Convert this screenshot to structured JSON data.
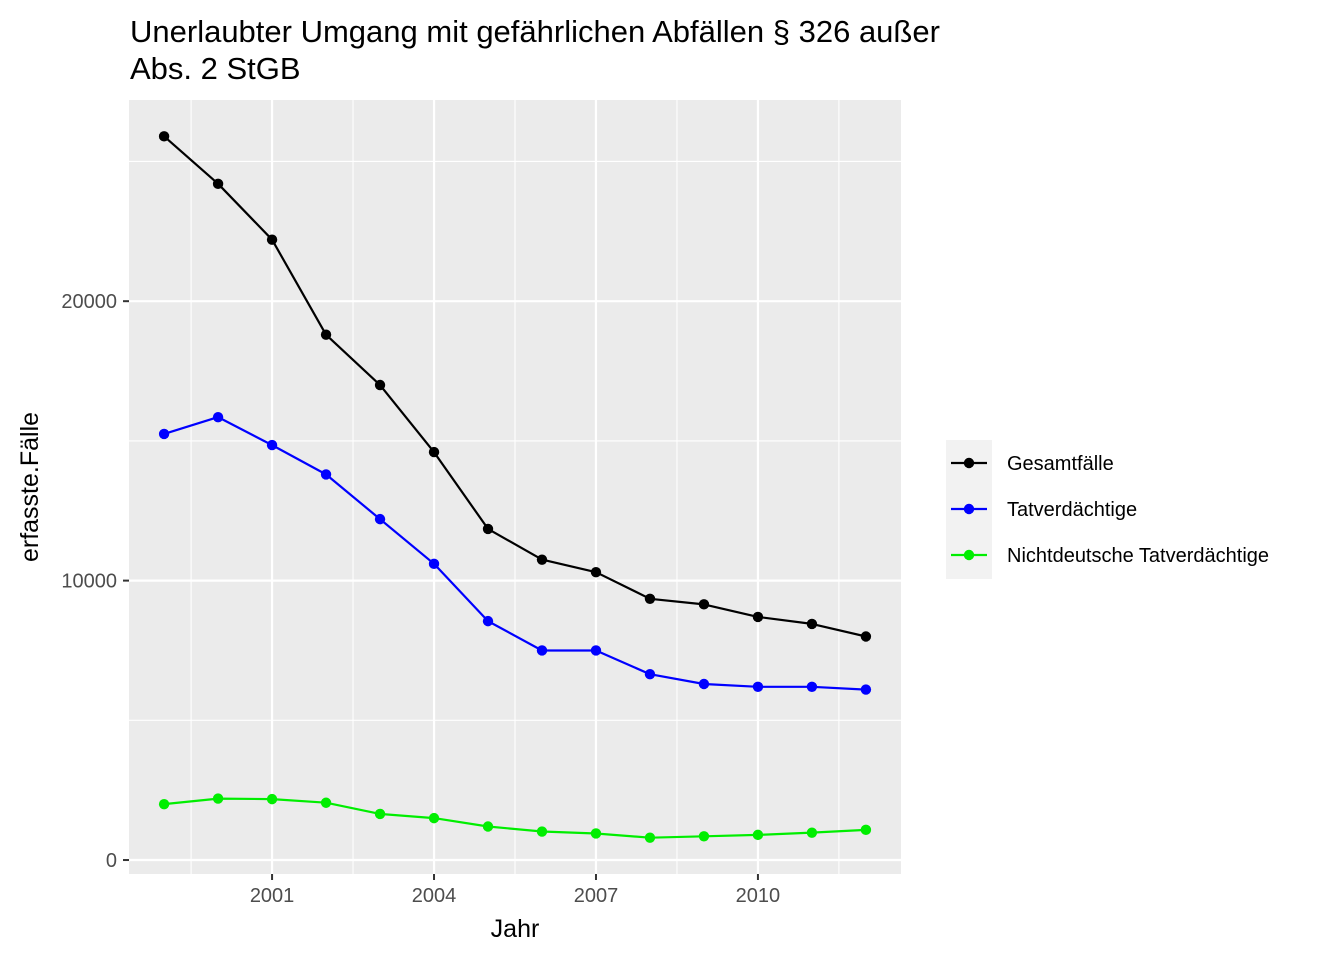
{
  "chart_data": {
    "type": "line",
    "title_lines": [
      "Unerlaubter Umgang mit gefährlichen Abfällen § 326 außer",
      "Abs. 2 StGB"
    ],
    "xlabel": "Jahr",
    "ylabel": "erfasste.Fälle",
    "x": [
      1999,
      2000,
      2001,
      2002,
      2003,
      2004,
      2005,
      2006,
      2007,
      2008,
      2009,
      2010,
      2011,
      2012
    ],
    "xlim": [
      1998.35,
      2012.65
    ],
    "ylim": [
      -500,
      27200
    ],
    "x_ticks": [
      2001,
      2004,
      2007,
      2010
    ],
    "x_tick_labels": [
      "2001",
      "2004",
      "2007",
      "2010"
    ],
    "y_ticks": [
      0,
      10000,
      20000
    ],
    "y_tick_labels": [
      "0",
      "10000",
      "20000"
    ],
    "grid": true,
    "legend_position": "right",
    "series": [
      {
        "name": "Gesamtfälle",
        "color": "#000000",
        "values": [
          25900,
          24200,
          22200,
          18800,
          17000,
          14600,
          11850,
          10750,
          10300,
          9350,
          9150,
          8700,
          8450,
          8000
        ]
      },
      {
        "name": "Tatverdächtige",
        "color": "#0000ff",
        "values": [
          15250,
          15850,
          14850,
          13800,
          12200,
          10600,
          8550,
          7500,
          7500,
          6650,
          6300,
          6200,
          6200,
          6100
        ]
      },
      {
        "name": "Nichtdeutsche Tatverdächtige",
        "color": "#00ee00",
        "values": [
          2000,
          2200,
          2180,
          2050,
          1650,
          1500,
          1200,
          1020,
          950,
          800,
          850,
          900,
          980,
          1080
        ]
      }
    ]
  }
}
